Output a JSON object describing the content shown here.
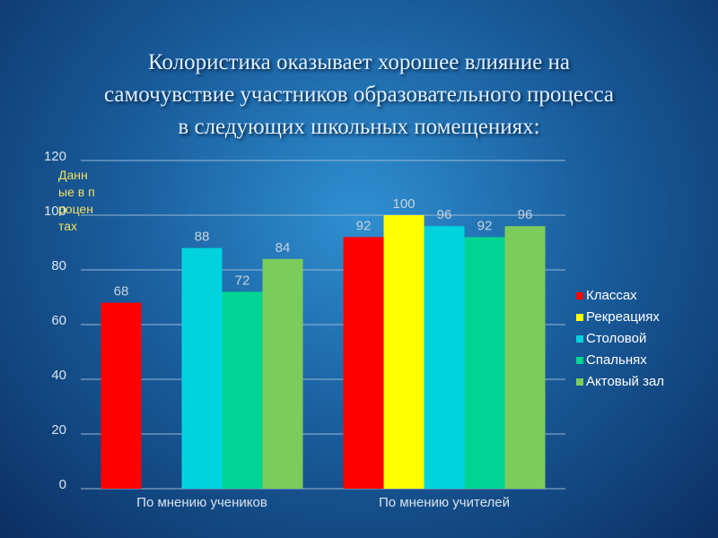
{
  "chart_data": {
    "type": "bar",
    "title": [
      "Колористика оказывает хорошее влияние на",
      "самочувствие участников образовательного процесса",
      "в следующих школьных помещениях:"
    ],
    "y_label": "Данные в процентах",
    "categories": [
      "По мнению учеников",
      "По мнению учителей"
    ],
    "series": [
      {
        "name": "Классах",
        "color": "#ff0000",
        "values": [
          68,
          92
        ]
      },
      {
        "name": "Рекреациях",
        "color": "#ffff00",
        "values": [
          null,
          100
        ]
      },
      {
        "name": "Столовой",
        "color": "#00d3e0",
        "values": [
          88,
          96
        ]
      },
      {
        "name": "Спальнях",
        "color": "#00d493",
        "values": [
          72,
          92
        ]
      },
      {
        "name": "Актовый зал",
        "color": "#7ccc5c",
        "values": [
          84,
          96
        ]
      }
    ],
    "ylim": [
      0,
      120
    ],
    "yticks": [
      0,
      20,
      40,
      60,
      80,
      100,
      120
    ],
    "grid": true,
    "legend": "right"
  }
}
